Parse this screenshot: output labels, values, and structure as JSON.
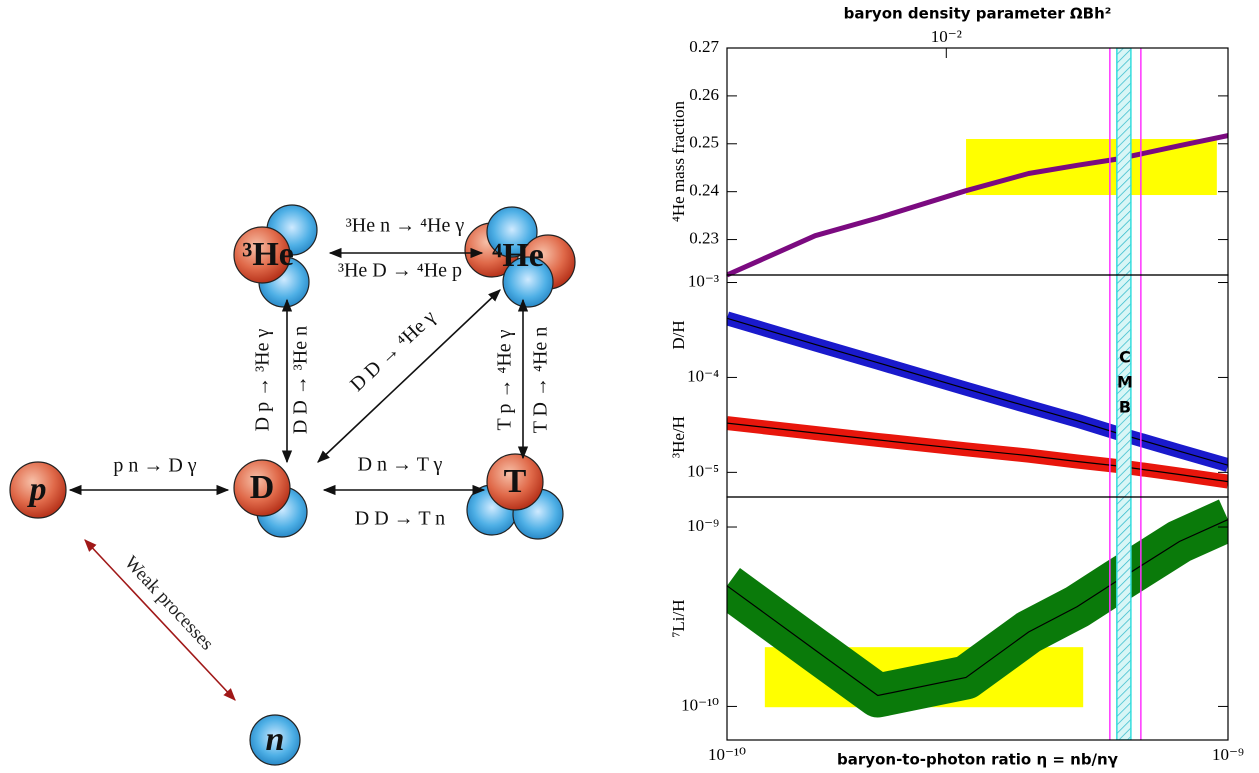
{
  "diagram": {
    "nodes": [
      {
        "label": "p"
      },
      {
        "label": "D"
      },
      {
        "label": "³He"
      },
      {
        "label": "⁴He"
      },
      {
        "label": "T"
      },
      {
        "label": "n"
      }
    ],
    "reactions": [
      {
        "labels": [
          "p n → D γ"
        ]
      },
      {
        "labels": [
          "D n → T γ",
          "D D → T n"
        ]
      },
      {
        "labels": [
          "³He n → ⁴He γ",
          "³He D → ⁴He p"
        ]
      },
      {
        "labels": [
          "D p → ³He γ",
          "D D → ³He n"
        ]
      },
      {
        "labels": [
          "D D → ⁴He γ"
        ]
      },
      {
        "labels": [
          "T p → ⁴He γ",
          "T D → ⁴He n"
        ]
      },
      {
        "labels": [
          "Weak processes"
        ]
      }
    ]
  },
  "cmb": {
    "range": [
      5.81e-10,
      6.7e-10
    ],
    "core": [
      6e-10,
      6.4e-10
    ],
    "line_color": "#ff33ff",
    "core_color": "#33dddd"
  },
  "chart_data": [
    {
      "type": "line",
      "xlog": true,
      "xlim": [
        1e-10,
        1e-09
      ],
      "ylim": [
        0.2226,
        0.27
      ],
      "yticks": [
        0.23,
        0.24,
        0.25,
        0.26,
        0.27
      ],
      "x2label": "baryon density parameter ΩBh²",
      "x2lim": [
        0.00365,
        0.0365
      ],
      "x2ticks": [
        {
          "value": 0.01,
          "label": "10⁻²"
        }
      ],
      "x": [
        1e-10,
        1.5e-10,
        2e-10,
        3e-10,
        4e-10,
        5e-10,
        6e-10,
        8e-10,
        1e-09
      ],
      "series": [
        {
          "name": "⁴He mass fraction",
          "color": "#7b0a80",
          "values": [
            0.2226,
            0.2308,
            0.2345,
            0.2402,
            0.2438,
            0.2455,
            0.2468,
            0.2496,
            0.2517
          ]
        }
      ],
      "box": {
        "x": [
          3e-10,
          9.5e-10
        ],
        "y": [
          0.2393,
          0.251
        ],
        "color": "#ffff00"
      }
    },
    {
      "type": "line",
      "xlog": true,
      "ylog": true,
      "xlim": [
        1e-10,
        1e-09
      ],
      "ylim": [
        5.5e-06,
        0.0012
      ],
      "yticks": [
        {
          "value": 0.001,
          "label": "10⁻³"
        },
        {
          "value": 0.0001,
          "label": "10⁻⁴"
        },
        {
          "value": 1e-05,
          "label": "10⁻⁵"
        }
      ],
      "annotation": "CMB",
      "x": [
        1e-10,
        1.5e-10,
        2e-10,
        3e-10,
        4e-10,
        5e-10,
        6e-10,
        8e-10,
        1e-09
      ],
      "series": [
        {
          "name": "D/H",
          "color": "#1a1acc",
          "values": [
            0.00042,
            0.000223,
            0.000143,
            7.6e-05,
            4.9e-05,
            3.5e-05,
            2.6e-05,
            1.67e-05,
            1.19e-05
          ]
        },
        {
          "name": "³He/H",
          "color": "#e8160c",
          "values": [
            3.3e-05,
            2.6e-05,
            2.2e-05,
            1.75e-05,
            1.5e-05,
            1.3e-05,
            1.17e-05,
            9.5e-06,
            8e-06
          ]
        }
      ]
    },
    {
      "type": "line",
      "xlog": true,
      "ylog": true,
      "xlim": [
        1e-10,
        1e-09
      ],
      "ylim": [
        6.5e-11,
        1.47e-09
      ],
      "yticks": [
        {
          "value": 1e-09,
          "label": "10⁻⁹"
        },
        {
          "value": 1e-10,
          "label": "10⁻¹⁰"
        }
      ],
      "xlabel": "baryon-to-photon ratio η = nb/nγ",
      "xticks": [
        {
          "value": 1e-10,
          "label": "10⁻¹⁰"
        },
        {
          "value": 1e-09,
          "label": "10⁻⁹"
        }
      ],
      "x": [
        1e-10,
        1.5e-10,
        2e-10,
        3e-10,
        4e-10,
        5e-10,
        6e-10,
        8e-10,
        1e-09
      ],
      "series": [
        {
          "name": "⁷Li/H",
          "color": "#0a7a0a",
          "values": [
            4.7e-10,
            2.06e-10,
            1.15e-10,
            1.45e-10,
            2.6e-10,
            3.6e-10,
            5e-10,
            8.3e-10,
            1.1e-09
          ]
        }
      ],
      "box": {
        "x": [
          1.19e-10,
          5.14e-10
        ],
        "y": [
          9.9e-11,
          2.14e-10
        ],
        "color": "#ffff00"
      }
    }
  ]
}
